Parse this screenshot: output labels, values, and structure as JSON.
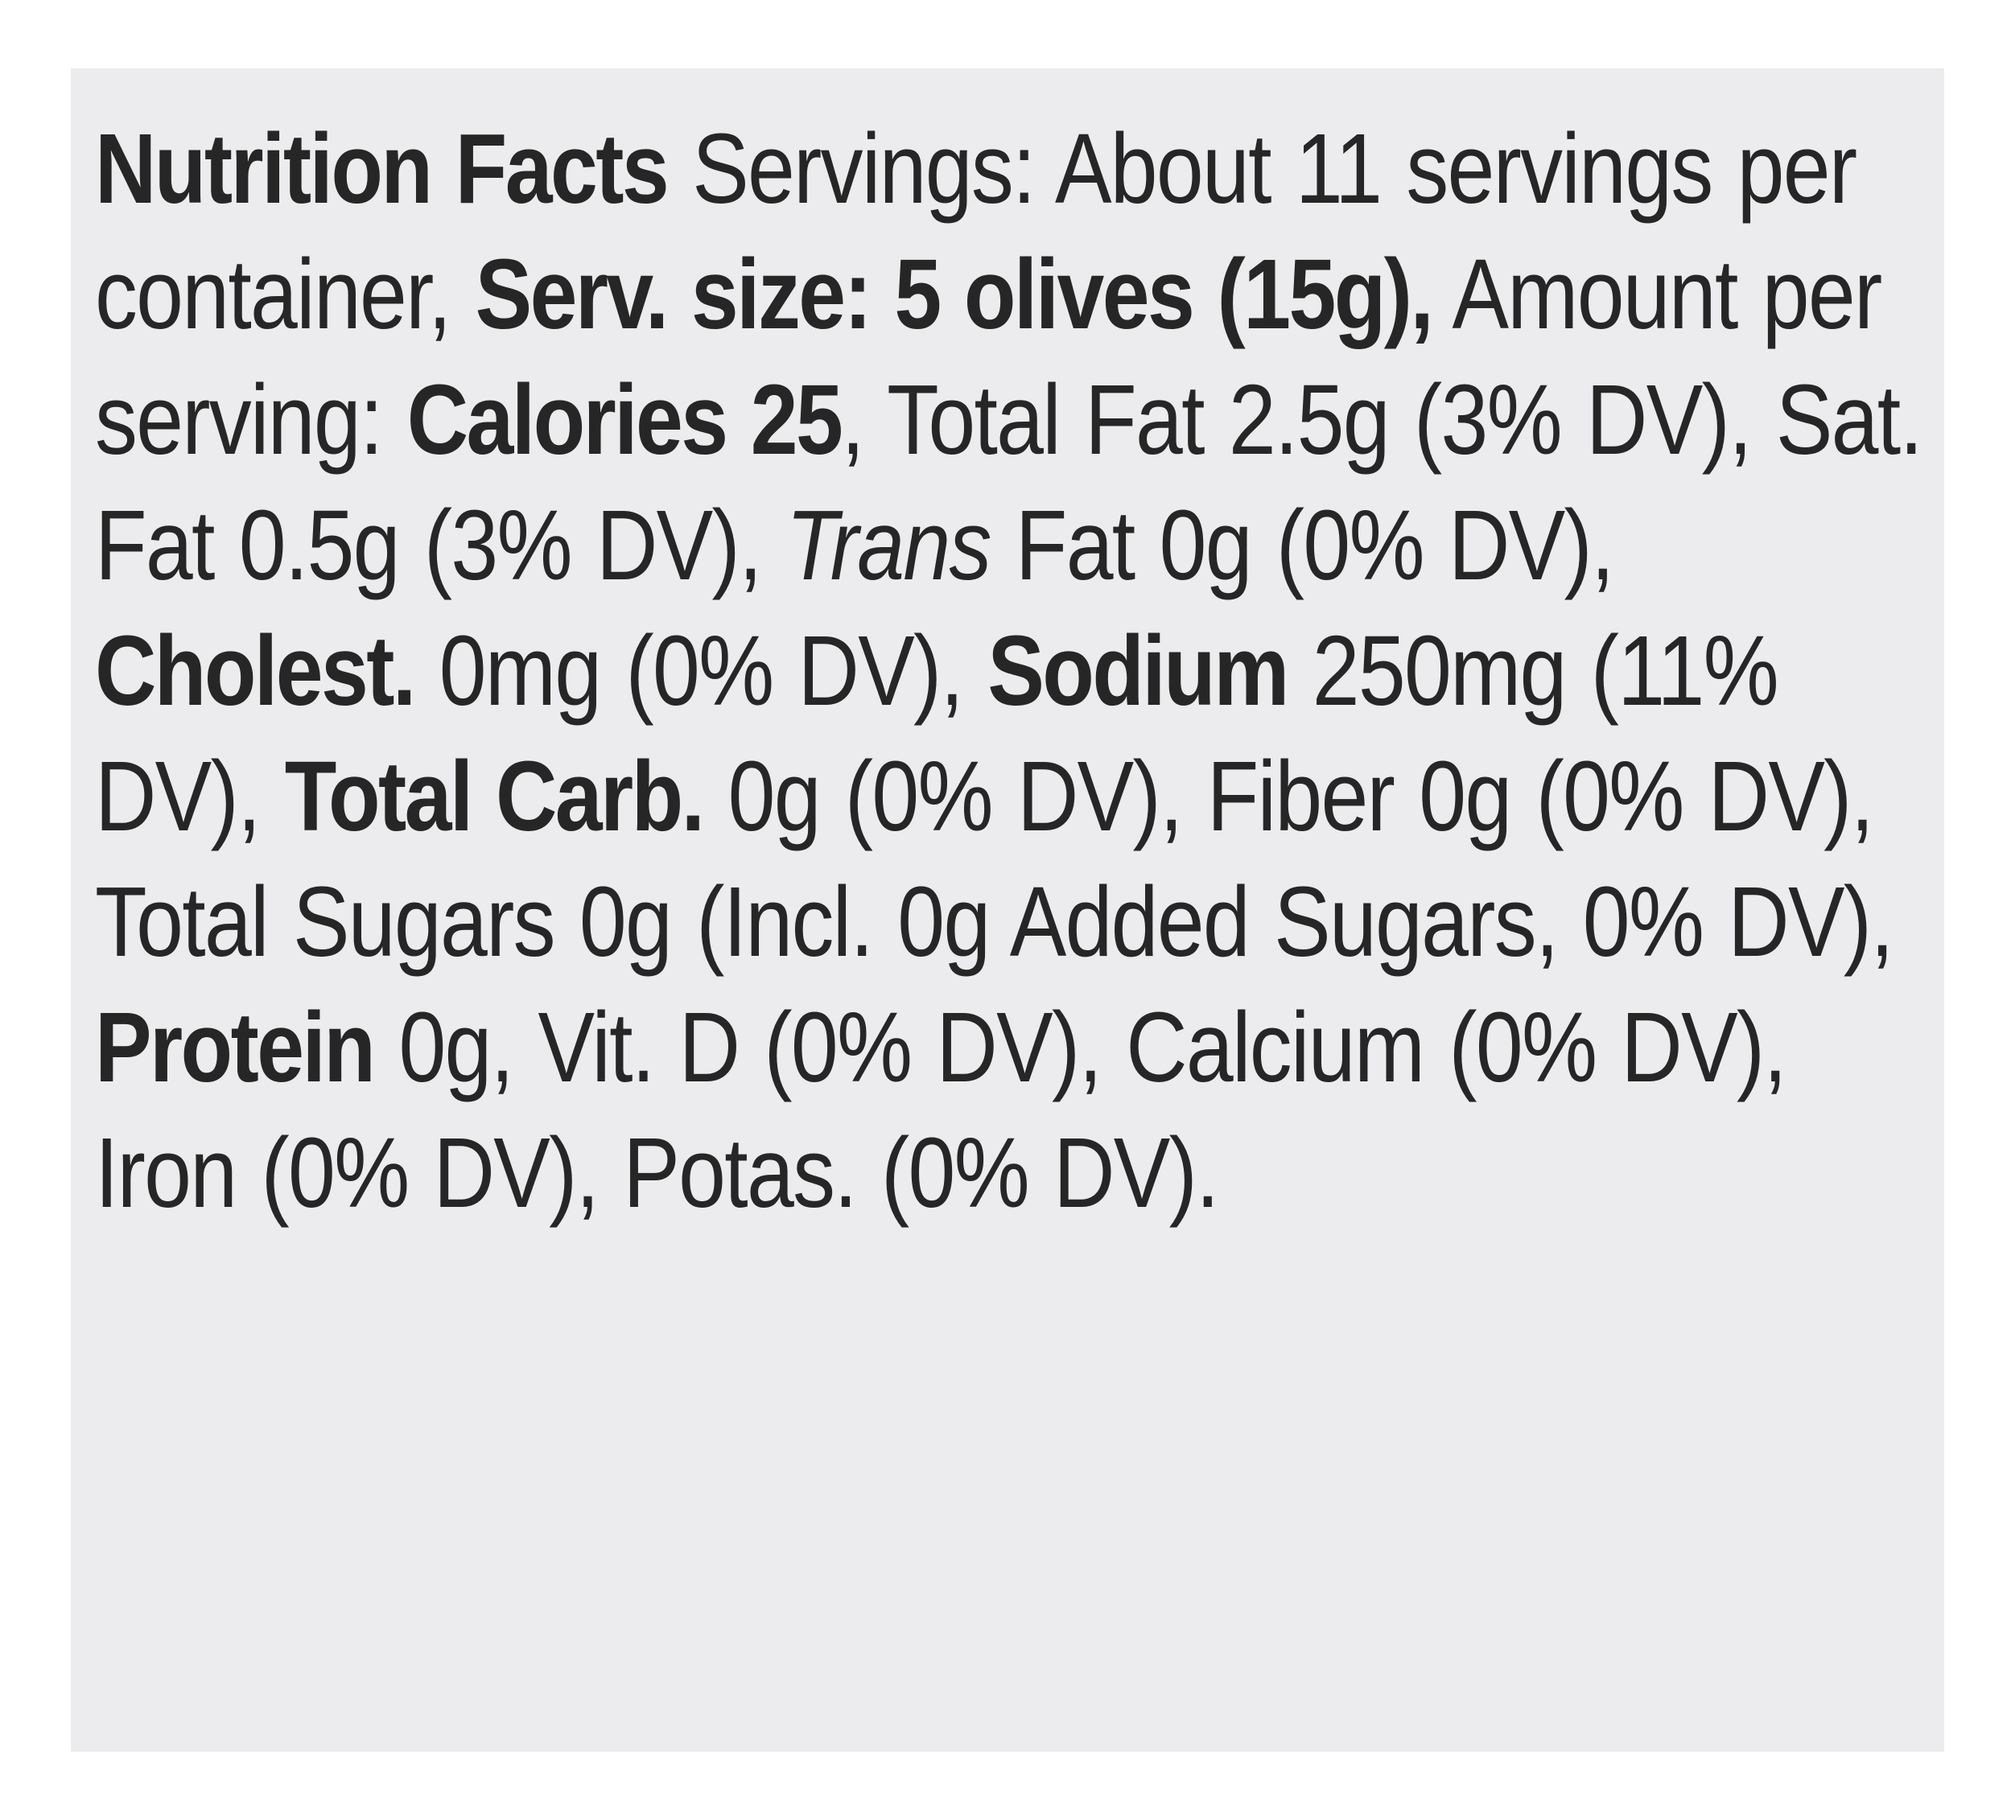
{
  "label": {
    "title": "Nutrition Facts",
    "servings_text": " Servings: About 11 servings per container, ",
    "serving_size_label": "Serv. size: 5 olives (15g),",
    "amount_per_serving": " Amount per serving: ",
    "calories_label": "Calories 25",
    "total_fat": ", Total Fat 2.5g (3% DV), Sat. Fat 0.5g (3% DV), ",
    "trans_label": "Trans",
    "trans_fat": " Fat 0g (0% DV), ",
    "cholesterol_label": "Cholest.",
    "cholesterol_value": " 0mg (0% DV), ",
    "sodium_label": "Sodium",
    "sodium_value": " 250mg (11% DV), ",
    "carb_label": "Total Carb.",
    "carb_value": " 0g (0% DV), Fiber 0g (0% DV), Total Sugars 0g (Incl. 0g Added Sugars, 0% DV), ",
    "protein_label": "Protein",
    "protein_value": " 0g, Vit. D (0% DV), Calcium (0% DV), Iron (0% DV), Potas. (0% DV)."
  }
}
